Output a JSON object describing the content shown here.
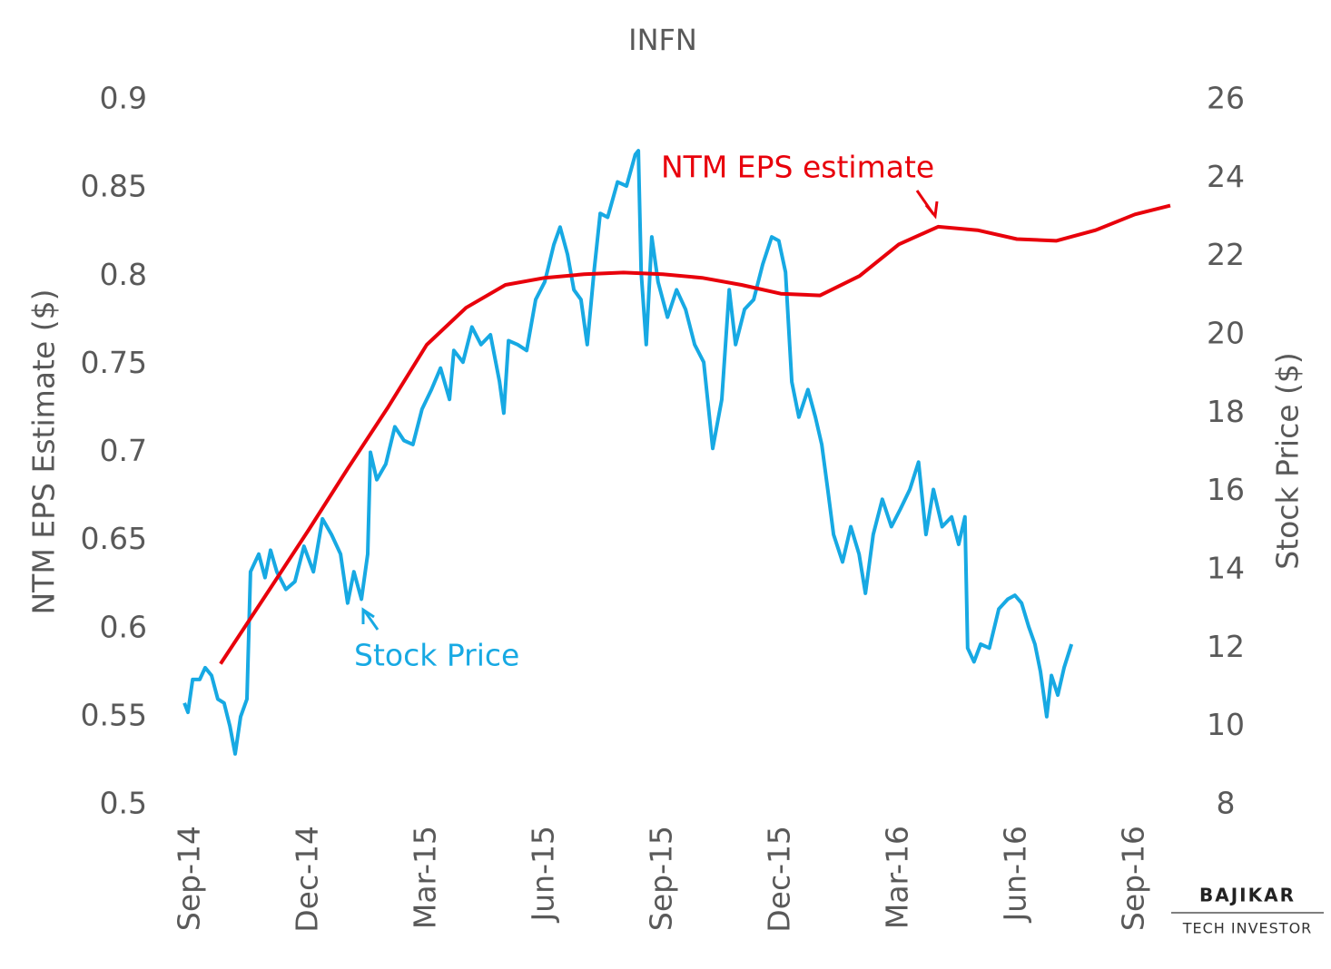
{
  "chart_data": {
    "type": "line",
    "title": "INFN",
    "y_label": "NTM EPS Estimate ($)",
    "y2_label": "Stock Price ($)",
    "annotations": [
      "NTM EPS estimate",
      "Stock Price"
    ],
    "brand": {
      "name": "BAJIKAR",
      "tagline": "TECH INVESTOR"
    },
    "xlim": [
      0,
      24
    ],
    "xticks": [
      {
        "value": 0,
        "label": "Sep-14"
      },
      {
        "value": 3,
        "label": "Dec-14"
      },
      {
        "value": 6,
        "label": "Mar-15"
      },
      {
        "value": 9,
        "label": "Jun-15"
      },
      {
        "value": 12,
        "label": "Sep-15"
      },
      {
        "value": 15,
        "label": "Dec-15"
      },
      {
        "value": 18,
        "label": "Mar-16"
      },
      {
        "value": 21,
        "label": "Jun-16"
      },
      {
        "value": 24,
        "label": "Sep-16"
      }
    ],
    "ylim": [
      0.5,
      0.9
    ],
    "yticks": [
      0.5,
      0.55,
      0.6,
      0.65,
      0.7,
      0.75,
      0.8,
      0.85,
      0.9
    ],
    "y2lim": [
      8,
      26
    ],
    "y2ticks": [
      8,
      10,
      12,
      14,
      16,
      18,
      20,
      22,
      24,
      26
    ],
    "grid": false,
    "series": [
      {
        "name": "NTM EPS estimate",
        "color": "#e8000b",
        "x": [
          0.76,
          2,
          3,
          4,
          5,
          6,
          7,
          8,
          9,
          10,
          11,
          12,
          13,
          14,
          15,
          16,
          17,
          18,
          19,
          20,
          21,
          22,
          23,
          24,
          24.9
        ],
        "values": [
          0.58,
          0.622,
          0.656,
          0.691,
          0.725,
          0.761,
          0.782,
          0.795,
          0.799,
          0.801,
          0.802,
          0.801,
          0.799,
          0.795,
          0.79,
          0.789,
          0.8,
          0.818,
          0.828,
          0.826,
          0.821,
          0.82,
          0.826,
          0.835,
          0.84
        ]
      },
      {
        "name": "Stock Price",
        "color": "#17a9e3",
        "axis": "y2",
        "x": [
          -0.16,
          -0.07,
          0.05,
          0.23,
          0.37,
          0.53,
          0.69,
          0.85,
          1.0,
          1.13,
          1.27,
          1.43,
          1.52,
          1.73,
          1.89,
          2.03,
          2.19,
          2.42,
          2.65,
          2.88,
          3.12,
          3.35,
          3.58,
          3.81,
          3.99,
          4.15,
          4.34,
          4.5,
          4.57,
          4.73,
          4.96,
          5.19,
          5.42,
          5.65,
          5.88,
          6.12,
          6.35,
          6.58,
          6.69,
          6.92,
          7.15,
          7.38,
          7.62,
          7.85,
          7.96,
          8.08,
          8.31,
          8.54,
          8.77,
          9.0,
          9.23,
          9.39,
          9.58,
          9.74,
          9.92,
          10.08,
          10.25,
          10.41,
          10.6,
          10.85,
          11.08,
          11.3,
          11.38,
          11.45,
          11.58,
          11.72,
          11.88,
          12.12,
          12.35,
          12.58,
          12.81,
          13.04,
          13.27,
          13.5,
          13.69,
          13.85,
          14.08,
          14.31,
          14.54,
          14.77,
          14.95,
          15.12,
          15.28,
          15.46,
          15.69,
          15.88,
          16.04,
          16.2,
          16.34,
          16.57,
          16.78,
          16.99,
          17.15,
          17.35,
          17.58,
          17.81,
          18.04,
          18.28,
          18.5,
          18.69,
          18.88,
          19.1,
          19.34,
          19.52,
          19.68,
          19.75,
          19.91,
          20.08,
          20.3,
          20.54,
          20.77,
          20.95,
          21.12,
          21.3,
          21.46,
          21.6,
          21.76,
          21.88,
          22.04,
          22.2,
          22.39
        ],
        "values": [
          10.6,
          10.36,
          11.2,
          11.2,
          11.5,
          11.3,
          10.7,
          10.6,
          10.0,
          9.3,
          10.25,
          10.7,
          13.95,
          14.4,
          13.8,
          14.5,
          13.95,
          13.5,
          13.7,
          14.6,
          13.95,
          15.3,
          14.9,
          14.4,
          13.15,
          13.95,
          13.25,
          14.4,
          17.0,
          16.3,
          16.7,
          17.65,
          17.3,
          17.2,
          18.1,
          18.6,
          19.15,
          18.35,
          19.6,
          19.3,
          20.2,
          19.75,
          20.0,
          18.8,
          18.0,
          19.85,
          19.75,
          19.6,
          20.9,
          21.35,
          22.3,
          22.75,
          22.05,
          21.15,
          20.9,
          19.75,
          21.6,
          23.1,
          23.0,
          23.9,
          23.8,
          24.6,
          24.7,
          21.6,
          19.75,
          22.5,
          21.35,
          20.45,
          21.15,
          20.65,
          19.75,
          19.3,
          17.1,
          18.35,
          21.15,
          19.75,
          20.65,
          20.9,
          21.8,
          22.5,
          22.4,
          21.6,
          18.8,
          17.9,
          18.6,
          17.9,
          17.2,
          16.0,
          14.9,
          14.2,
          15.1,
          14.4,
          13.4,
          14.9,
          15.8,
          15.1,
          15.55,
          16.05,
          16.75,
          14.9,
          16.05,
          15.1,
          15.35,
          14.65,
          15.35,
          12.0,
          11.65,
          12.1,
          12.0,
          13.0,
          13.25,
          13.35,
          13.15,
          12.55,
          12.1,
          11.4,
          10.25,
          11.3,
          10.8,
          11.5,
          12.1
        ]
      }
    ]
  }
}
